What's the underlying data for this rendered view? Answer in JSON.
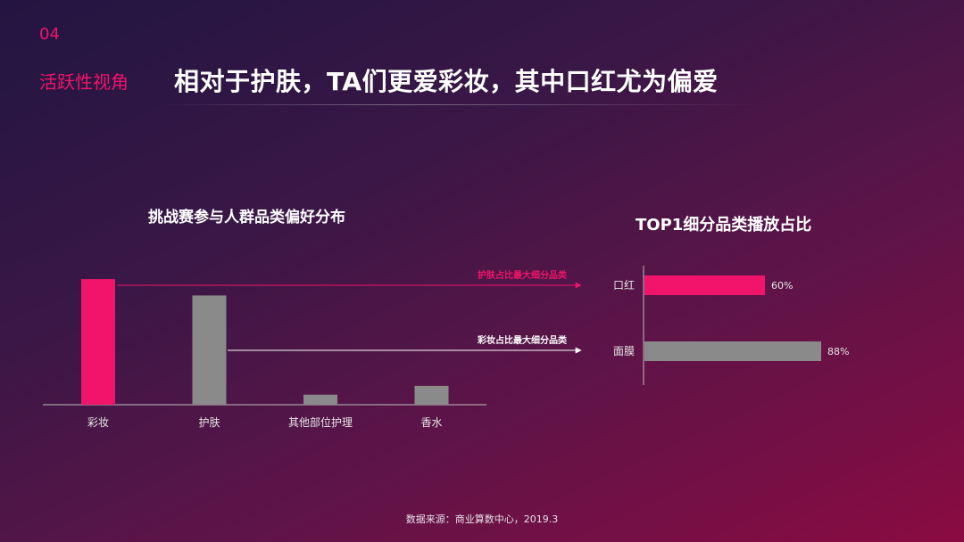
{
  "header": {
    "section_number": "04",
    "section_label": "活跃性视角",
    "title": "相对于护肤，TA们更爱彩妆，其中口红尤为偏爱"
  },
  "colors": {
    "accent": "#f0146a",
    "neutral_bar": "#8a8a8a"
  },
  "annotations": {
    "skincare_label": "护肤占比最大细分品类",
    "makeup_label": "彩妆占比最大细分品类"
  },
  "footer": {
    "source": "数据来源：商业算数中心，2019.3"
  },
  "chart_data": [
    {
      "type": "bar",
      "title": "挑战赛参与人群品类偏好分布",
      "categories": [
        "彩妆",
        "护肤",
        "其他部位护理",
        "香水"
      ],
      "values": [
        100,
        87,
        8,
        15
      ],
      "ylim": [
        0,
        110
      ],
      "axis_values_shown": false,
      "bar_colors": [
        "#f0146a",
        "#8a8a8a",
        "#8a8a8a",
        "#8a8a8a"
      ]
    },
    {
      "type": "bar",
      "orientation": "horizontal",
      "title": "TOP1细分品类播放占比",
      "categories": [
        "口红",
        "面膜"
      ],
      "values": [
        60,
        88
      ],
      "value_labels": [
        "60%",
        "88%"
      ],
      "bar_colors": [
        "#f0146a",
        "#8a8a8a"
      ]
    }
  ]
}
